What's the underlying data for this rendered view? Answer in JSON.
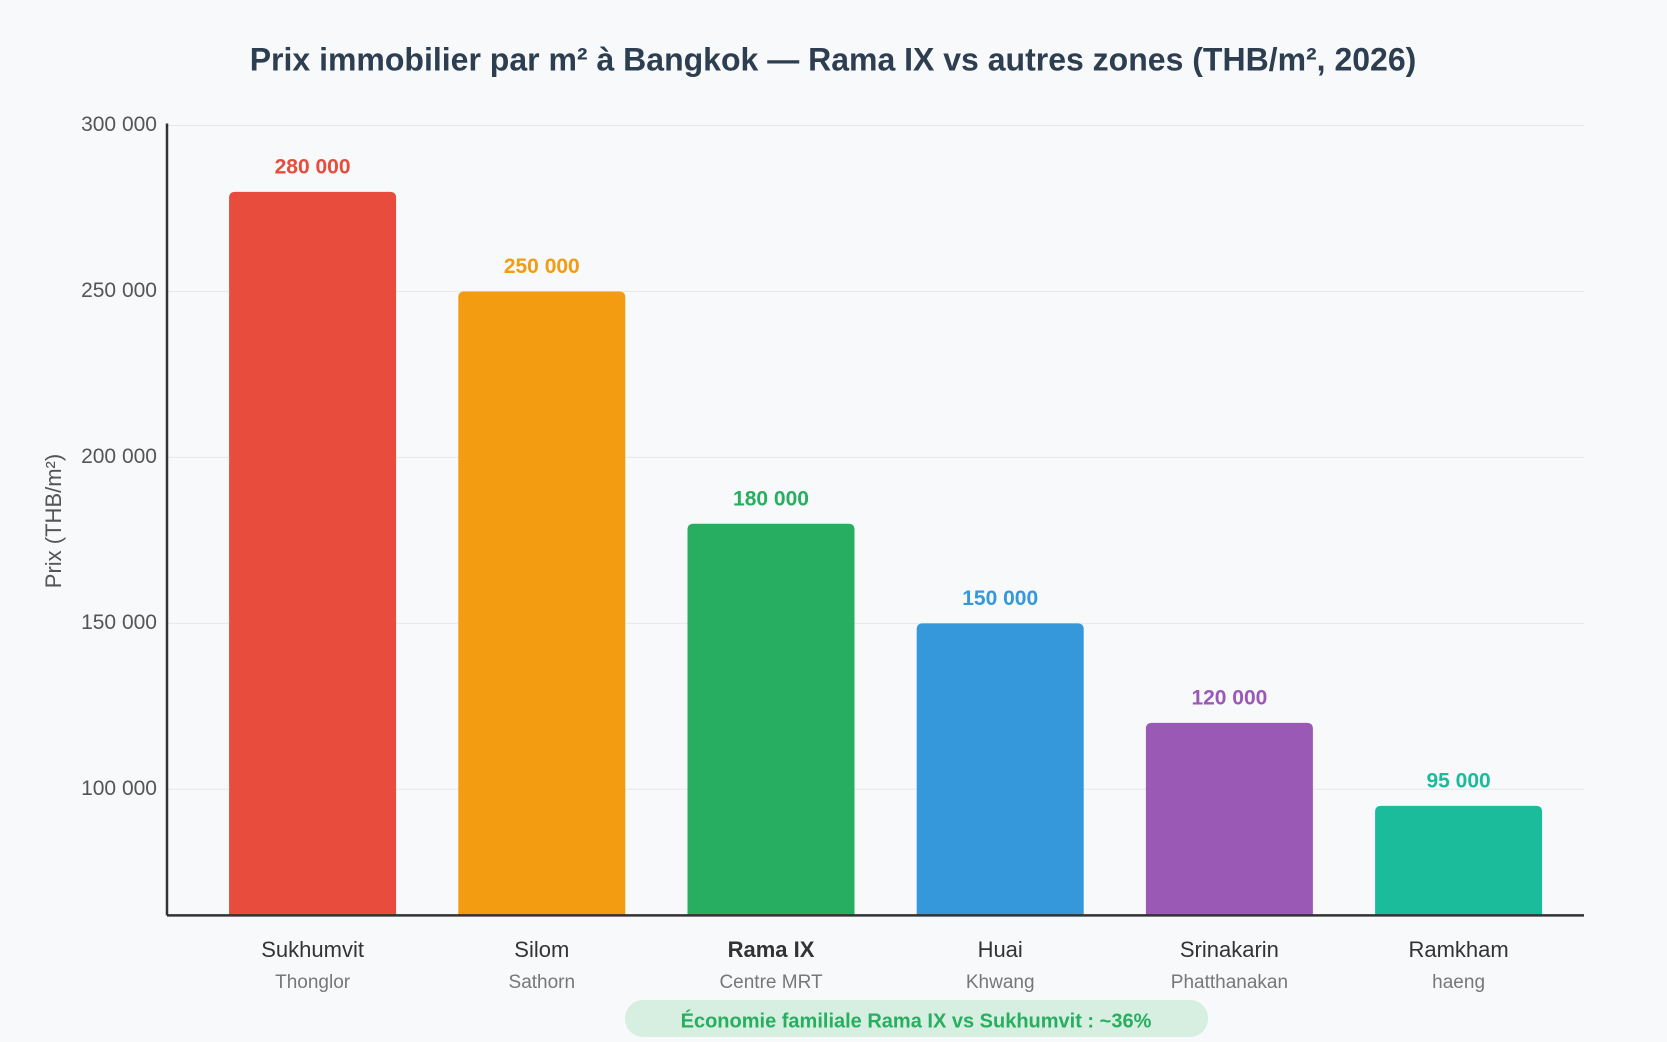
{
  "chart_data": {
    "type": "bar",
    "title": "Prix immobilier par m² à Bangkok — Rama IX vs autres zones (THB/m², 2026)",
    "y_label": "Prix (THB/m²)",
    "categories": [
      "Sukhumvit",
      "Silom",
      "Rama IX",
      "Huai",
      "Srinakarin",
      "Ramkham"
    ],
    "category_sublabels": [
      "Thonglor",
      "Sathorn",
      "Centre MRT",
      "Khwang",
      "Phatthanakan",
      "haeng"
    ],
    "values": [
      280000,
      250000,
      180000,
      150000,
      120000,
      95000
    ],
    "value_labels": [
      "280 000",
      "250 000",
      "180 000",
      "150 000",
      "120 000",
      "95 000"
    ],
    "colors": [
      "#e74c3c",
      "#f39c12",
      "#27ae60",
      "#3498db",
      "#9b59b6",
      "#1abc9c"
    ],
    "highlight_index": 2,
    "ylim": [
      62000,
      300000
    ],
    "yticks": [
      {
        "value": 100000,
        "label": "100 000"
      },
      {
        "value": 150000,
        "label": "150 000"
      },
      {
        "value": 200000,
        "label": "200 000"
      },
      {
        "value": 250000,
        "label": "250 000"
      },
      {
        "value": 300000,
        "label": "300 000"
      }
    ],
    "grid": true,
    "annotation": "Économie familiale Rama IX vs Sukhumvit : ~36%"
  }
}
